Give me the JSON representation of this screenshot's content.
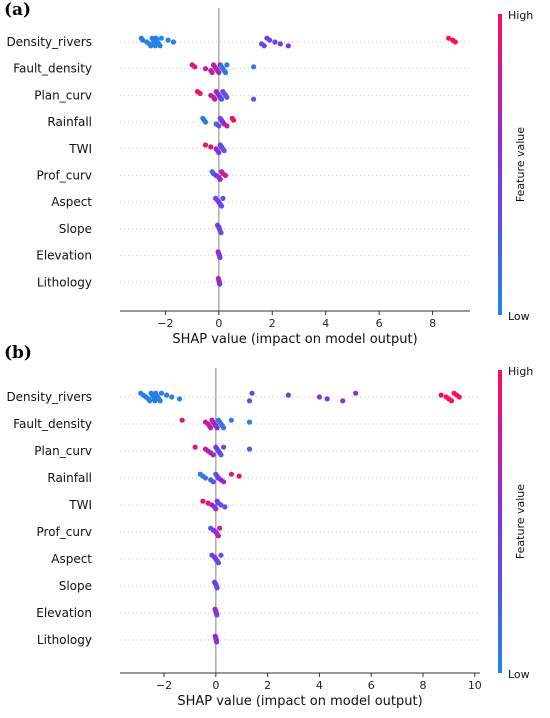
{
  "colors": {
    "low": "#1e88e5",
    "high": "#ff0d57",
    "zero_line": "#999999",
    "row_guide": "#cccccc"
  },
  "chart_data": [
    {
      "type": "scatter",
      "subtype": "shap-beeswarm",
      "panel_label": "(a)",
      "xlabel": "SHAP value (impact on model output)",
      "xlim": [
        -3.7,
        9.4
      ],
      "xticks": [
        -2,
        0,
        2,
        4,
        6,
        8
      ],
      "colorbar": {
        "title": "Feature value",
        "high_label": "High",
        "low_label": "Low"
      },
      "features": [
        {
          "name": "Density_rivers",
          "points": [
            [
              -2.9,
              0.0
            ],
            [
              -2.85,
              0.1
            ],
            [
              -2.7,
              0.0
            ],
            [
              -2.6,
              0.05
            ],
            [
              -2.55,
              0.1
            ],
            [
              -2.5,
              0.05
            ],
            [
              -2.45,
              0.0
            ],
            [
              -2.42,
              0.1
            ],
            [
              -2.4,
              0.08
            ],
            [
              -2.38,
              0.0
            ],
            [
              -2.35,
              0.1
            ],
            [
              -2.32,
              0.05
            ],
            [
              -2.3,
              0.0
            ],
            [
              -2.25,
              0.1
            ],
            [
              -2.2,
              0.05
            ],
            [
              -2.15,
              0.0
            ],
            [
              -1.9,
              0.0
            ],
            [
              -1.7,
              0.05
            ],
            [
              1.6,
              0.35
            ],
            [
              1.7,
              0.4
            ],
            [
              1.8,
              0.42
            ],
            [
              1.9,
              0.4
            ],
            [
              2.1,
              0.45
            ],
            [
              2.3,
              0.45
            ],
            [
              2.6,
              0.5
            ],
            [
              8.6,
              1.0
            ],
            [
              8.75,
              1.0
            ],
            [
              8.85,
              1.0
            ]
          ]
        },
        {
          "name": "Fault_density",
          "points": [
            [
              -1.0,
              0.85
            ],
            [
              -0.9,
              0.9
            ],
            [
              -0.5,
              0.75
            ],
            [
              -0.3,
              0.8
            ],
            [
              -0.25,
              0.7
            ],
            [
              -0.2,
              0.75
            ],
            [
              -0.15,
              0.7
            ],
            [
              -0.1,
              0.8
            ],
            [
              -0.05,
              0.65
            ],
            [
              0.0,
              0.6
            ],
            [
              0.05,
              0.5
            ],
            [
              0.1,
              0.1
            ],
            [
              0.15,
              0.2
            ],
            [
              0.2,
              0.15
            ],
            [
              0.25,
              0.1
            ],
            [
              0.3,
              0.1
            ],
            [
              1.3,
              0.1
            ]
          ]
        },
        {
          "name": "Plan_curv",
          "points": [
            [
              -0.8,
              0.9
            ],
            [
              -0.7,
              0.95
            ],
            [
              -0.3,
              0.75
            ],
            [
              -0.2,
              0.8
            ],
            [
              -0.15,
              0.7
            ],
            [
              -0.1,
              0.6
            ],
            [
              -0.05,
              0.7
            ],
            [
              0.0,
              0.55
            ],
            [
              0.05,
              0.5
            ],
            [
              0.1,
              0.35
            ],
            [
              0.15,
              0.4
            ],
            [
              0.2,
              0.3
            ],
            [
              0.25,
              0.35
            ],
            [
              0.3,
              0.3
            ],
            [
              1.3,
              0.25
            ]
          ]
        },
        {
          "name": "Rainfall",
          "points": [
            [
              -0.6,
              0.05
            ],
            [
              -0.55,
              0.1
            ],
            [
              -0.5,
              0.05
            ],
            [
              -0.1,
              0.2
            ],
            [
              0.0,
              0.3
            ],
            [
              0.05,
              0.35
            ],
            [
              0.1,
              0.4
            ],
            [
              0.15,
              0.6
            ],
            [
              0.2,
              0.65
            ],
            [
              0.3,
              0.8
            ],
            [
              0.5,
              0.9
            ],
            [
              0.55,
              0.95
            ]
          ]
        },
        {
          "name": "TWI",
          "points": [
            [
              -0.5,
              0.95
            ],
            [
              -0.3,
              0.9
            ],
            [
              -0.1,
              0.6
            ],
            [
              -0.05,
              0.55
            ],
            [
              0.0,
              0.5
            ],
            [
              0.05,
              0.4
            ],
            [
              0.1,
              0.45
            ],
            [
              0.15,
              0.35
            ],
            [
              0.2,
              0.3
            ]
          ]
        },
        {
          "name": "Prof_curv",
          "points": [
            [
              -0.25,
              0.2
            ],
            [
              -0.2,
              0.25
            ],
            [
              -0.1,
              0.5
            ],
            [
              0.0,
              0.55
            ],
            [
              0.05,
              0.6
            ],
            [
              0.1,
              0.7
            ],
            [
              0.15,
              0.75
            ],
            [
              0.25,
              0.8
            ]
          ]
        },
        {
          "name": "Aspect",
          "points": [
            [
              -0.12,
              0.4
            ],
            [
              -0.05,
              0.5
            ],
            [
              0.0,
              0.55
            ],
            [
              0.05,
              0.45
            ],
            [
              0.1,
              0.35
            ],
            [
              0.15,
              0.3
            ]
          ]
        },
        {
          "name": "Slope",
          "points": [
            [
              -0.05,
              0.4
            ],
            [
              0.0,
              0.5
            ],
            [
              0.02,
              0.55
            ],
            [
              0.05,
              0.35
            ],
            [
              0.08,
              0.3
            ]
          ]
        },
        {
          "name": "Elevation",
          "points": [
            [
              -0.03,
              0.6
            ],
            [
              0.0,
              0.7
            ],
            [
              0.02,
              0.5
            ],
            [
              0.04,
              0.45
            ]
          ]
        },
        {
          "name": "Lithology",
          "points": [
            [
              -0.02,
              0.55
            ],
            [
              0.0,
              0.65
            ],
            [
              0.02,
              0.6
            ],
            [
              0.03,
              0.5
            ]
          ]
        }
      ]
    },
    {
      "type": "scatter",
      "subtype": "shap-beeswarm",
      "panel_label": "(b)",
      "xlabel": "SHAP value (impact on model output)",
      "xlim": [
        -3.7,
        10.2
      ],
      "xticks": [
        -2,
        0,
        2,
        4,
        6,
        8,
        10
      ],
      "colorbar": {
        "title": "Feature value",
        "high_label": "High",
        "low_label": "Low"
      },
      "features": [
        {
          "name": "Density_rivers",
          "points": [
            [
              -2.9,
              0.0
            ],
            [
              -2.8,
              0.05
            ],
            [
              -2.7,
              0.1
            ],
            [
              -2.6,
              0.05
            ],
            [
              -2.55,
              0.0
            ],
            [
              -2.5,
              0.1
            ],
            [
              -2.45,
              0.05
            ],
            [
              -2.4,
              0.0
            ],
            [
              -2.38,
              0.08
            ],
            [
              -2.35,
              0.1
            ],
            [
              -2.32,
              0.0
            ],
            [
              -2.3,
              0.05
            ],
            [
              -2.25,
              0.1
            ],
            [
              -2.2,
              0.0
            ],
            [
              -2.15,
              0.05
            ],
            [
              -2.1,
              0.0
            ],
            [
              -1.9,
              0.1
            ],
            [
              -1.7,
              0.05
            ],
            [
              -1.4,
              0.0
            ],
            [
              1.3,
              0.35
            ],
            [
              1.4,
              0.4
            ],
            [
              2.8,
              0.45
            ],
            [
              4.0,
              0.45
            ],
            [
              4.3,
              0.5
            ],
            [
              4.9,
              0.55
            ],
            [
              5.4,
              0.6
            ],
            [
              8.7,
              1.0
            ],
            [
              8.9,
              1.0
            ],
            [
              9.0,
              1.0
            ],
            [
              9.1,
              1.0
            ],
            [
              9.2,
              1.0
            ],
            [
              9.3,
              1.0
            ],
            [
              9.4,
              1.0
            ]
          ]
        },
        {
          "name": "Fault_density",
          "points": [
            [
              -1.3,
              0.85
            ],
            [
              -0.4,
              0.8
            ],
            [
              -0.3,
              0.75
            ],
            [
              -0.25,
              0.7
            ],
            [
              -0.2,
              0.75
            ],
            [
              -0.15,
              0.7
            ],
            [
              -0.1,
              0.8
            ],
            [
              -0.05,
              0.65
            ],
            [
              0.0,
              0.6
            ],
            [
              0.05,
              0.5
            ],
            [
              0.1,
              0.1
            ],
            [
              0.15,
              0.15
            ],
            [
              0.2,
              0.1
            ],
            [
              0.25,
              0.15
            ],
            [
              0.3,
              0.1
            ],
            [
              0.6,
              0.1
            ],
            [
              1.3,
              0.05
            ]
          ]
        },
        {
          "name": "Plan_curv",
          "points": [
            [
              -0.8,
              0.9
            ],
            [
              -0.4,
              0.8
            ],
            [
              -0.3,
              0.75
            ],
            [
              -0.2,
              0.7
            ],
            [
              -0.1,
              0.6
            ],
            [
              0.0,
              0.55
            ],
            [
              0.05,
              0.5
            ],
            [
              0.1,
              0.35
            ],
            [
              0.15,
              0.4
            ],
            [
              0.2,
              0.3
            ],
            [
              0.3,
              0.3
            ],
            [
              1.3,
              0.2
            ]
          ]
        },
        {
          "name": "Rainfall",
          "points": [
            [
              -0.6,
              0.05
            ],
            [
              -0.5,
              0.1
            ],
            [
              -0.4,
              0.1
            ],
            [
              -0.2,
              0.2
            ],
            [
              -0.1,
              0.25
            ],
            [
              0.0,
              0.3
            ],
            [
              0.05,
              0.35
            ],
            [
              0.1,
              0.45
            ],
            [
              0.2,
              0.55
            ],
            [
              0.3,
              0.6
            ],
            [
              0.6,
              0.85
            ],
            [
              0.9,
              0.95
            ]
          ]
        },
        {
          "name": "TWI",
          "points": [
            [
              -0.5,
              0.95
            ],
            [
              -0.3,
              0.9
            ],
            [
              -0.15,
              0.7
            ],
            [
              -0.05,
              0.6
            ],
            [
              0.0,
              0.55
            ],
            [
              0.05,
              0.45
            ],
            [
              0.1,
              0.4
            ],
            [
              0.2,
              0.3
            ],
            [
              0.35,
              0.35
            ]
          ]
        },
        {
          "name": "Prof_curv",
          "points": [
            [
              -0.2,
              0.25
            ],
            [
              -0.1,
              0.5
            ],
            [
              0.0,
              0.55
            ],
            [
              0.05,
              0.6
            ],
            [
              0.1,
              0.7
            ],
            [
              0.15,
              0.75
            ]
          ]
        },
        {
          "name": "Aspect",
          "points": [
            [
              -0.15,
              0.4
            ],
            [
              -0.05,
              0.5
            ],
            [
              0.0,
              0.55
            ],
            [
              0.05,
              0.45
            ],
            [
              0.1,
              0.35
            ],
            [
              0.2,
              0.3
            ]
          ]
        },
        {
          "name": "Slope",
          "points": [
            [
              -0.05,
              0.4
            ],
            [
              0.0,
              0.5
            ],
            [
              0.02,
              0.55
            ],
            [
              0.05,
              0.35
            ]
          ]
        },
        {
          "name": "Elevation",
          "points": [
            [
              -0.03,
              0.6
            ],
            [
              0.0,
              0.7
            ],
            [
              0.02,
              0.5
            ],
            [
              0.04,
              0.45
            ]
          ]
        },
        {
          "name": "Lithology",
          "points": [
            [
              -0.02,
              0.55
            ],
            [
              0.0,
              0.65
            ],
            [
              0.02,
              0.6
            ],
            [
              0.03,
              0.5
            ]
          ]
        }
      ]
    }
  ]
}
